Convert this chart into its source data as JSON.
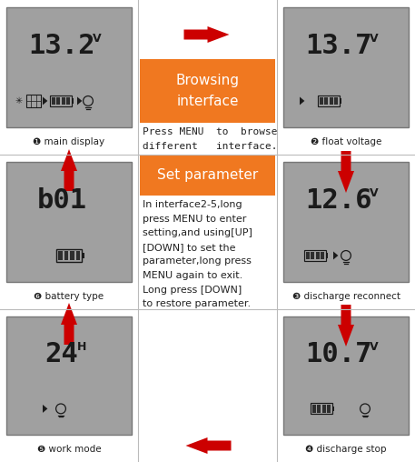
{
  "bg_color": "#ffffff",
  "lcd_bg": "#a0a0a0",
  "lcd_text_color": "#1a1a1a",
  "orange_color": "#f07820",
  "orange_text": "#ffffff",
  "red_color": "#cc0000",
  "gray_text": "#222222",
  "col_boundaries": [
    0,
    152,
    305,
    457
  ],
  "row_boundaries": [
    0,
    170,
    340,
    508
  ],
  "displays": [
    {
      "id": 1,
      "label": "main display",
      "value": "13.2",
      "unit": "V",
      "row": 0,
      "col": 0,
      "icons": "solar_bat_bulb"
    },
    {
      "id": 2,
      "label": "float voltage",
      "value": "13.7",
      "unit": "V",
      "row": 0,
      "col": 2,
      "icons": "arrow_bat"
    },
    {
      "id": 6,
      "label": "battery type",
      "value": "b01",
      "unit": "",
      "row": 1,
      "col": 0,
      "icons": "bat_only"
    },
    {
      "id": 3,
      "label": "discharge reconnect",
      "value": "12.6",
      "unit": "V",
      "row": 1,
      "col": 2,
      "icons": "bat_arrow_bulb"
    },
    {
      "id": 5,
      "label": "work mode",
      "value": "24",
      "unit": "H",
      "row": 2,
      "col": 0,
      "icons": "arrow_bulb"
    },
    {
      "id": 4,
      "label": "discharge stop",
      "value": "10.7",
      "unit": "V",
      "row": 2,
      "col": 2,
      "icons": "bat_bulb_only"
    }
  ],
  "browsing_title": "Browsing\ninterface",
  "set_param_title": "Set parameter",
  "press_menu_text": "Press MENU  to  browse\ndifferent   interface.",
  "long_press_text": "In interface2-5,long\npress MENU to enter\nsetting,and using[UP]\n[DOWN] to set the\nparameter,long press\nMENU again to exit.\nLong press [DOWN]\nto restore parameter."
}
